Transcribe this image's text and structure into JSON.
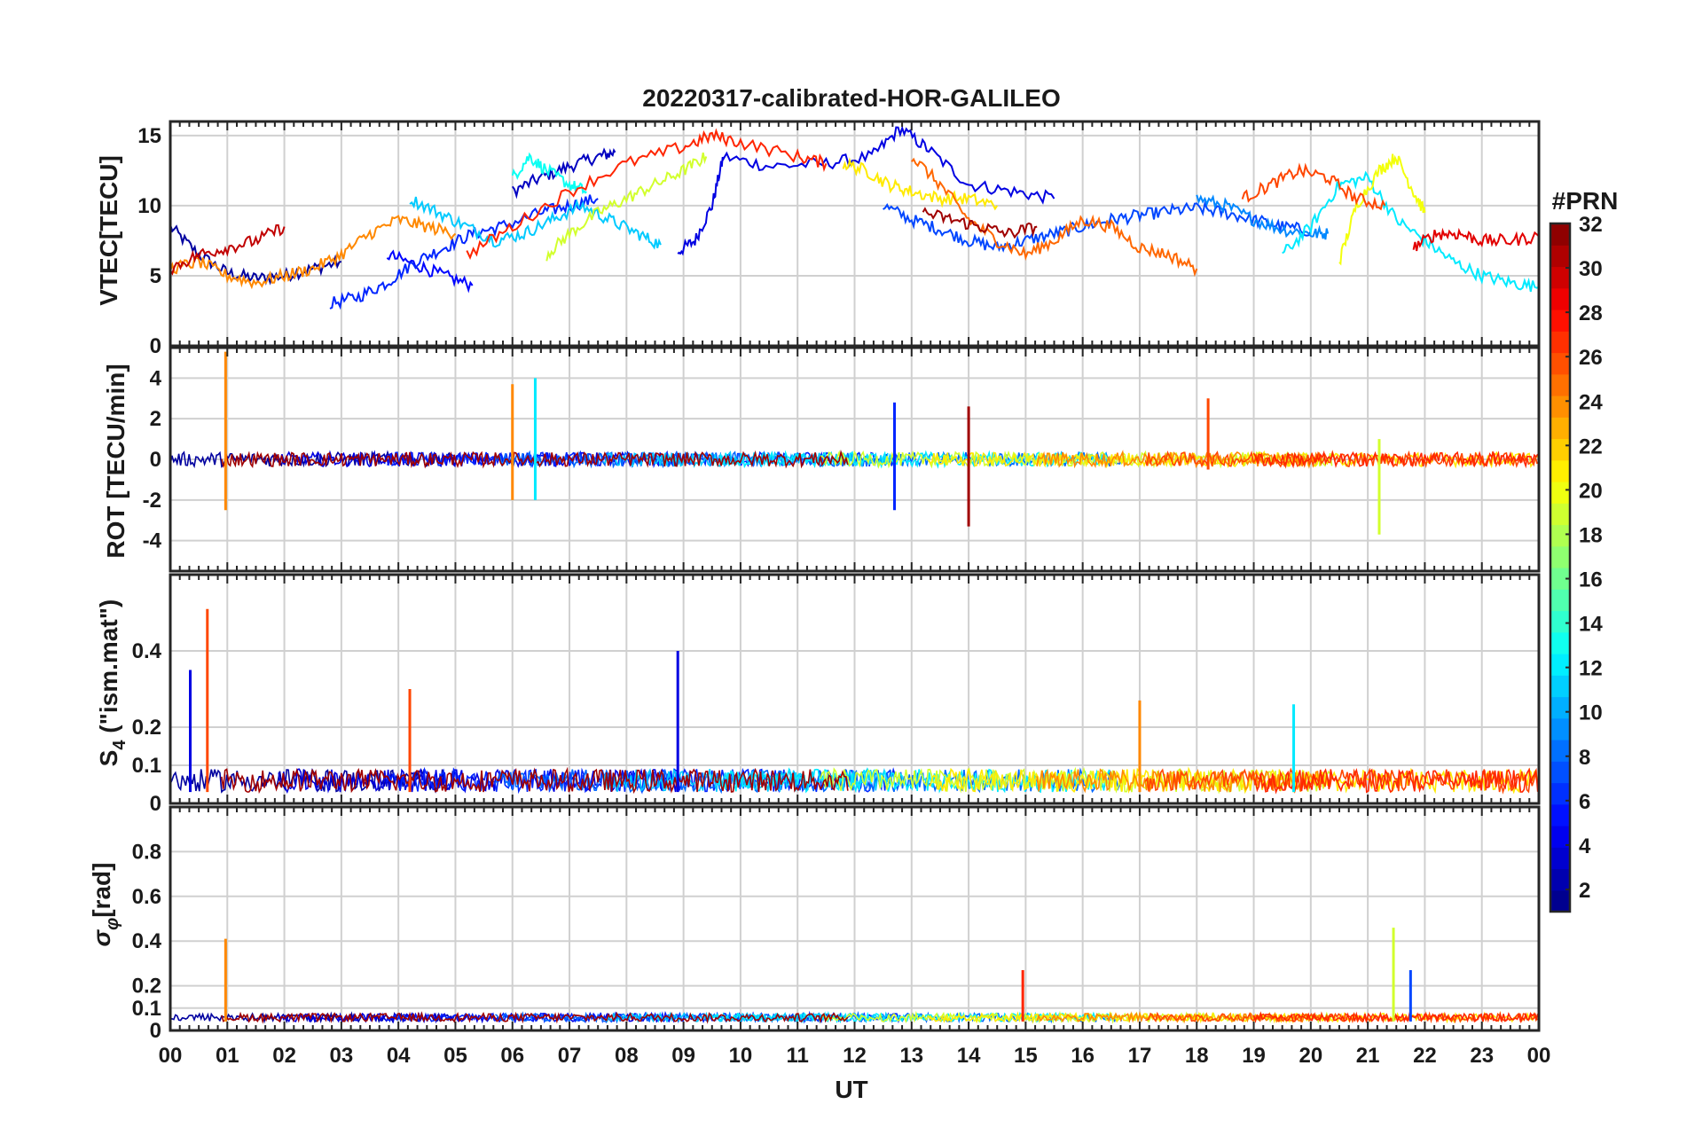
{
  "chart_data": {
    "type": "line",
    "title": "20220317-calibrated-HOR-GALILEO",
    "xlabel": "UT",
    "x_ticks": [
      "00",
      "01",
      "02",
      "03",
      "04",
      "05",
      "06",
      "07",
      "08",
      "09",
      "10",
      "11",
      "12",
      "13",
      "14",
      "15",
      "16",
      "17",
      "18",
      "19",
      "20",
      "21",
      "22",
      "23",
      "00"
    ],
    "xlim": [
      0,
      24
    ],
    "colorbar": {
      "label": "#PRN",
      "ticks": [
        "32",
        "30",
        "28",
        "26",
        "24",
        "22",
        "20",
        "18",
        "16",
        "14",
        "12",
        "10",
        "8",
        "6",
        "4",
        "2"
      ],
      "range": [
        1,
        32
      ],
      "colormap": "jet"
    },
    "panels": [
      {
        "id": "vtec",
        "ylabel": "VTEC[TECU]",
        "ylim": [
          0,
          16
        ],
        "yticks": [
          0,
          5,
          10,
          15
        ],
        "ytick_labels": [
          "0",
          "5",
          "10",
          "15"
        ],
        "series": [
          {
            "prn": 2,
            "x": [
              0.0,
              0.5,
              1.0,
              1.5,
              2.0,
              2.5,
              3.0
            ],
            "y": [
              8.5,
              6.5,
              5.2,
              4.8,
              5.0,
              5.5,
              6.0
            ]
          },
          {
            "prn": 3,
            "x": [
              6.0,
              6.5,
              7.0,
              7.5,
              7.8
            ],
            "y": [
              11.0,
              12.0,
              12.8,
              13.5,
              13.8
            ]
          },
          {
            "prn": 4,
            "x": [
              8.9,
              9.2,
              9.5,
              9.7,
              10.5,
              11.5,
              12.3,
              12.8,
              13.3,
              14.0,
              14.8,
              15.5
            ],
            "y": [
              6.7,
              7.5,
              10.0,
              13.5,
              12.8,
              13.0,
              13.5,
              15.5,
              14.0,
              11.5,
              11.0,
              10.5
            ]
          },
          {
            "prn": 5,
            "x": [
              3.8,
              4.3,
              4.8,
              5.3
            ],
            "y": [
              6.5,
              5.8,
              5.0,
              4.3
            ]
          },
          {
            "prn": 6,
            "x": [
              2.8,
              3.3,
              3.8,
              4.3,
              4.8,
              5.3,
              5.8,
              6.5,
              7.0,
              7.5
            ],
            "y": [
              3.0,
              3.5,
              4.5,
              6.0,
              7.0,
              8.0,
              8.5,
              9.5,
              10.0,
              10.5
            ]
          },
          {
            "prn": 7,
            "x": [
              12.5,
              13.0,
              13.5,
              14.0,
              14.5,
              15.0,
              15.5,
              16.0,
              16.5,
              17.0,
              17.5,
              18.0,
              18.5,
              19.0,
              19.5,
              20.0
            ],
            "y": [
              10.0,
              9.0,
              8.3,
              7.5,
              7.0,
              7.5,
              8.0,
              8.5,
              9.0,
              9.3,
              9.6,
              9.8,
              9.5,
              9.0,
              8.5,
              8.2
            ]
          },
          {
            "prn": 9,
            "x": [
              18.0,
              18.5,
              19.0,
              19.5,
              20.0,
              20.3
            ],
            "y": [
              10.5,
              10.0,
              9.0,
              8.3,
              8.0,
              8.0
            ]
          },
          {
            "prn": 11,
            "x": [
              4.2,
              4.7,
              5.2,
              5.7,
              6.2,
              6.7,
              7.2,
              7.7,
              8.2,
              8.6
            ],
            "y": [
              10.5,
              9.5,
              8.5,
              7.5,
              8.0,
              9.0,
              10.0,
              9.0,
              8.0,
              7.2
            ]
          },
          {
            "prn": 13,
            "x": [
              6.0,
              6.3,
              6.6,
              7.0,
              7.3
            ],
            "y": [
              12.0,
              13.5,
              12.5,
              11.5,
              11.0
            ]
          },
          {
            "prn": 12,
            "x": [
              19.5,
              20.0,
              20.5,
              21.0,
              21.5,
              22.0,
              22.5,
              23.0,
              23.5,
              24.0
            ],
            "y": [
              6.5,
              8.5,
              11.5,
              12.0,
              9.0,
              7.5,
              6.0,
              5.0,
              4.5,
              4.2
            ]
          },
          {
            "prn": 19,
            "x": [
              6.6,
              7.0,
              7.5,
              8.0,
              8.5,
              9.0,
              9.4
            ],
            "y": [
              6.5,
              8.0,
              9.5,
              10.5,
              11.5,
              12.5,
              13.5
            ]
          },
          {
            "prn": 21,
            "x": [
              11.8,
              12.2,
              12.6,
              13.0,
              13.5,
              14.0,
              14.5
            ],
            "y": [
              13.0,
              12.5,
              11.5,
              11.0,
              10.5,
              10.5,
              10.0
            ]
          },
          {
            "prn": 20,
            "x": [
              20.5,
              20.8,
              21.2,
              21.5,
              21.8,
              22.0
            ],
            "y": [
              6.0,
              10.0,
              12.5,
              13.5,
              11.0,
              9.5
            ]
          },
          {
            "prn": 24,
            "x": [
              0.0,
              0.5,
              1.0,
              1.5,
              2.0,
              2.5,
              3.0,
              3.5,
              4.0,
              4.5,
              5.0
            ],
            "y": [
              5.5,
              6.0,
              5.0,
              4.5,
              5.0,
              5.5,
              6.5,
              8.0,
              9.0,
              8.5,
              8.0
            ]
          },
          {
            "prn": 25,
            "x": [
              13.0,
              13.5,
              14.0,
              14.5,
              15.0,
              15.5,
              16.0,
              16.5,
              17.0,
              17.5,
              18.0
            ],
            "y": [
              13.5,
              11.5,
              9.0,
              7.5,
              6.5,
              7.5,
              9.0,
              8.5,
              7.0,
              6.5,
              5.5
            ]
          },
          {
            "prn": 26,
            "x": [
              18.8,
              19.3,
              19.8,
              20.3,
              20.8,
              21.3
            ],
            "y": [
              10.5,
              11.5,
              12.5,
              12.0,
              10.5,
              10.0
            ]
          },
          {
            "prn": 27,
            "x": [
              5.2,
              6.0,
              7.0,
              8.0,
              9.0,
              9.5,
              10.0,
              11.0,
              11.5
            ],
            "y": [
              6.5,
              8.5,
              11.0,
              13.0,
              14.2,
              15.0,
              14.5,
              13.5,
              13.0
            ]
          },
          {
            "prn": 30,
            "x": [
              0.0,
              0.5,
              1.0,
              1.5,
              2.0
            ],
            "y": [
              5.5,
              6.5,
              7.0,
              7.5,
              8.5
            ]
          },
          {
            "prn": 31,
            "x": [
              13.2,
              13.7,
              14.2,
              14.7,
              15.2
            ],
            "y": [
              9.5,
              9.0,
              8.5,
              8.0,
              8.5
            ]
          },
          {
            "prn": 29,
            "x": [
              21.8,
              22.2,
              22.6,
              23.0,
              23.5,
              24.0
            ],
            "y": [
              7.0,
              8.0,
              8.0,
              7.5,
              7.5,
              7.8
            ]
          }
        ]
      },
      {
        "id": "rot",
        "ylabel": "ROT [TECU/min]",
        "ylim": [
          -5.5,
          5.5
        ],
        "yticks": [
          -4,
          -2,
          0,
          2,
          4
        ],
        "ytick_labels": [
          "-4",
          "-2",
          "0",
          "2",
          "4"
        ],
        "spikes": [
          {
            "prn": 24,
            "x": 0.97,
            "low": -2.5,
            "high": 5.3
          },
          {
            "prn": 24,
            "x": 6.0,
            "low": -2.0,
            "high": 3.7
          },
          {
            "prn": 12,
            "x": 6.4,
            "low": -2.0,
            "high": 4.0
          },
          {
            "prn": 6,
            "x": 12.7,
            "low": -2.5,
            "high": 2.8
          },
          {
            "prn": 31,
            "x": 14.0,
            "low": -3.3,
            "high": 2.6
          },
          {
            "prn": 26,
            "x": 18.2,
            "low": -0.5,
            "high": 3.0
          },
          {
            "prn": 19,
            "x": 21.2,
            "low": -3.7,
            "high": 1.0
          }
        ]
      },
      {
        "id": "s4",
        "ylabel": "S4 (\"ism.mat\")",
        "ylim": [
          0,
          0.6
        ],
        "yticks": [
          0,
          0.1,
          0.2,
          0.4
        ],
        "ytick_labels": [
          "0",
          "0.1",
          "0.2",
          "0.4"
        ],
        "spikes": [
          {
            "prn": 26,
            "x": 0.65,
            "high": 0.51
          },
          {
            "prn": 4,
            "x": 0.35,
            "high": 0.35
          },
          {
            "prn": 26,
            "x": 4.2,
            "high": 0.3
          },
          {
            "prn": 4,
            "x": 8.9,
            "high": 0.4
          },
          {
            "prn": 24,
            "x": 17.0,
            "high": 0.27
          },
          {
            "prn": 12,
            "x": 19.7,
            "high": 0.26
          }
        ]
      },
      {
        "id": "sigma",
        "ylabel": "σφ[rad]",
        "ylim": [
          0,
          1
        ],
        "yticks": [
          0,
          0.1,
          0.2,
          0.4,
          0.6,
          0.8
        ],
        "ytick_labels": [
          "0",
          "0.1",
          "0.2",
          "0.4",
          "0.6",
          "0.8"
        ],
        "spikes": [
          {
            "prn": 24,
            "x": 0.97,
            "high": 0.41
          },
          {
            "prn": 27,
            "x": 14.95,
            "high": 0.27
          },
          {
            "prn": 19,
            "x": 21.45,
            "high": 0.46
          },
          {
            "prn": 7,
            "x": 21.75,
            "high": 0.27
          }
        ]
      }
    ]
  }
}
